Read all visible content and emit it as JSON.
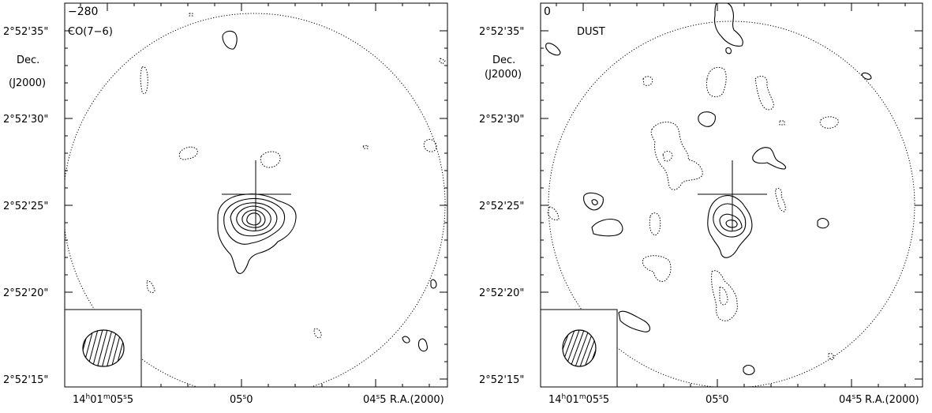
{
  "panels": [
    {
      "id": "co",
      "corner_value": "−280",
      "map_label": "CO(7−6)",
      "y_axis_title": [
        "Dec.",
        "(J2000)"
      ],
      "y_ticks": [
        "2°52'35\"",
        "2°52'30\"",
        "2°52'25\"",
        "2°52'20\"",
        "2°52'15\""
      ],
      "x_ticks": [
        "14h01m05s5",
        "05.0",
        "04s5"
      ],
      "x_tick_parts": [
        {
          "a": "14",
          "s1": "h",
          "b": "01",
          "s2": "m",
          "c": "05",
          "s3": "s",
          "d": "5"
        },
        {
          "a": "05",
          "s1": "s",
          "b": "0"
        },
        {
          "a": "04",
          "s1": "s",
          "b": "5"
        }
      ],
      "x_axis_title": "R.A.(2000)",
      "beam_inset": true,
      "primary_beam_circle": true,
      "source_marker": "cross"
    },
    {
      "id": "dust",
      "corner_value": "0",
      "map_label": "DUST",
      "y_axis_title": [
        "Dec.",
        "(J2000)"
      ],
      "y_ticks": [
        "2°52'35\"",
        "2°52'30\"",
        "2°52'25\"",
        "2°52'20\"",
        "2°52'15\""
      ],
      "x_ticks": [
        "14h01m05s5",
        "05.0",
        "04s5"
      ],
      "x_tick_parts": [
        {
          "a": "14",
          "s1": "h",
          "b": "01",
          "s2": "m",
          "c": "05",
          "s3": "s",
          "d": "5"
        },
        {
          "a": "05",
          "s1": "s",
          "b": "0"
        },
        {
          "a": "04",
          "s1": "s",
          "b": "5"
        }
      ],
      "x_axis_title": "R.A.(2000)",
      "beam_inset": true,
      "primary_beam_circle": true,
      "source_marker": "cross"
    }
  ]
}
